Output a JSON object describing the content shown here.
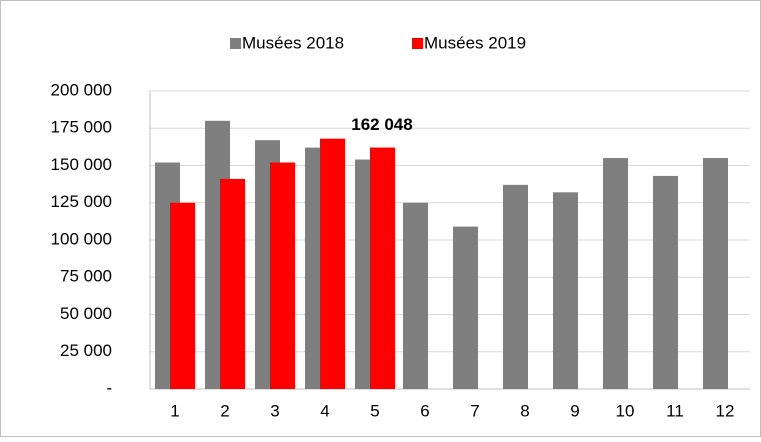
{
  "chart_data": {
    "type": "bar",
    "categories": [
      "1",
      "2",
      "3",
      "4",
      "5",
      "6",
      "7",
      "8",
      "9",
      "10",
      "11",
      "12"
    ],
    "series": [
      {
        "name": "Musées 2018",
        "color": "#7f7f7f",
        "values": [
          152000,
          180000,
          167000,
          162000,
          154000,
          125000,
          109000,
          137000,
          132000,
          155000,
          143000,
          155000
        ]
      },
      {
        "name": "Musées 2019",
        "color": "#ff0000",
        "values": [
          125000,
          141000,
          152000,
          168000,
          162048,
          null,
          null,
          null,
          null,
          null,
          null,
          null
        ],
        "value_labels": [
          null,
          null,
          null,
          null,
          "162 048",
          null,
          null,
          null,
          null,
          null,
          null,
          null
        ]
      }
    ],
    "ylim": [
      0,
      200000
    ],
    "yticks": [
      {
        "value": 0,
        "label": "-"
      },
      {
        "value": 25000,
        "label": "25 000"
      },
      {
        "value": 50000,
        "label": "50 000"
      },
      {
        "value": 75000,
        "label": "75 000"
      },
      {
        "value": 100000,
        "label": "100 000"
      },
      {
        "value": 125000,
        "label": "125 000"
      },
      {
        "value": 150000,
        "label": "150 000"
      },
      {
        "value": 175000,
        "label": "175 000"
      },
      {
        "value": 200000,
        "label": "200 000"
      }
    ],
    "grid": true,
    "legend": "top"
  }
}
